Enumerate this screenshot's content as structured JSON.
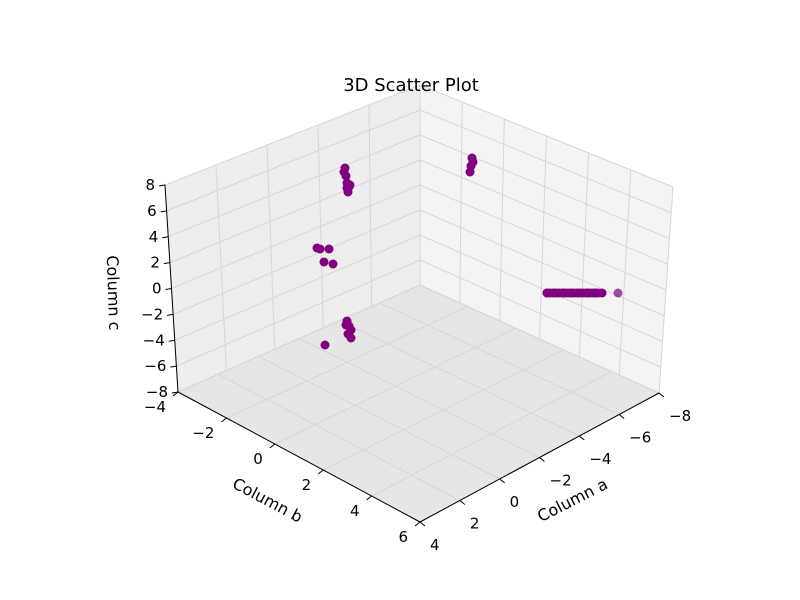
{
  "chart_data": {
    "type": "scatter",
    "title": "3D Scatter Plot",
    "xlabel": "Column a",
    "ylabel": "Column b",
    "zlabel": "Column c",
    "x_ticks": [
      "4",
      "2",
      "0",
      "−2",
      "−4",
      "−6",
      "−8"
    ],
    "y_ticks": [
      "−4",
      "−2",
      "0",
      "2",
      "4",
      "6"
    ],
    "z_ticks": [
      "8",
      "6",
      "4",
      "2",
      "0",
      "−2",
      "−4",
      "−6",
      "−8"
    ],
    "marker_color": "#800080",
    "grid": true,
    "points_screen_hint": "purple markers in clusters"
  }
}
